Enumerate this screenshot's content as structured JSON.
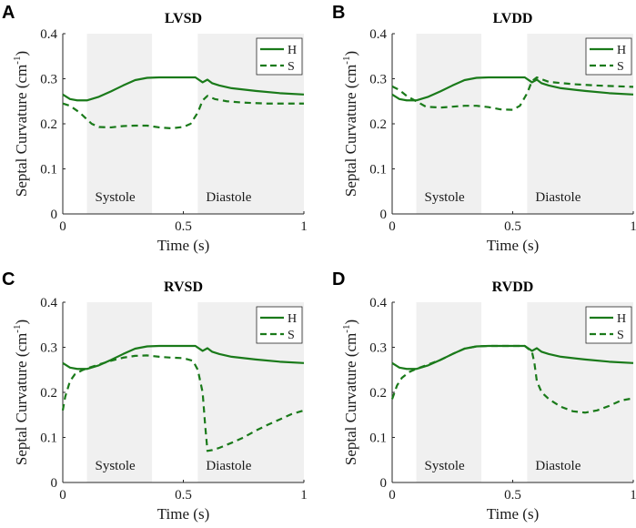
{
  "chart_data": [
    {
      "panel": "A",
      "type": "line",
      "title": "LVSD",
      "xlabel": "Time (s)",
      "ylabel": "Septal Curvature (cm",
      "ylabel_sup": "-1",
      "ylabel_close": ")",
      "xlim": [
        0,
        1
      ],
      "ylim": [
        0,
        0.4
      ],
      "xticks": [
        "0",
        "0.5",
        "1"
      ],
      "yticks": [
        "0",
        "0.1",
        "0.2",
        "0.3",
        "0.4"
      ],
      "xtick_values": [
        0,
        0.5,
        1
      ],
      "ytick_values": [
        0,
        0.1,
        0.2,
        0.3,
        0.4
      ],
      "regions": [
        {
          "label": "Systole",
          "start": 0.1,
          "end": 0.37
        },
        {
          "label": "Diastole",
          "start": 0.56,
          "end": 1.0
        }
      ],
      "legend": [
        "H",
        "S"
      ],
      "series": [
        {
          "name": "H",
          "style": "solid",
          "x": [
            0,
            0.03,
            0.06,
            0.1,
            0.15,
            0.2,
            0.25,
            0.3,
            0.35,
            0.4,
            0.45,
            0.5,
            0.55,
            0.58,
            0.6,
            0.62,
            0.65,
            0.7,
            0.8,
            0.9,
            1.0
          ],
          "y": [
            0.265,
            0.255,
            0.252,
            0.252,
            0.26,
            0.272,
            0.285,
            0.297,
            0.302,
            0.303,
            0.303,
            0.303,
            0.303,
            0.292,
            0.298,
            0.29,
            0.285,
            0.279,
            0.273,
            0.268,
            0.265
          ]
        },
        {
          "name": "S",
          "style": "dashed",
          "x": [
            0,
            0.03,
            0.07,
            0.1,
            0.12,
            0.15,
            0.2,
            0.25,
            0.3,
            0.35,
            0.4,
            0.45,
            0.5,
            0.53,
            0.56,
            0.58,
            0.6,
            0.63,
            0.68,
            0.75,
            0.85,
            1.0
          ],
          "y": [
            0.245,
            0.24,
            0.225,
            0.21,
            0.2,
            0.193,
            0.192,
            0.195,
            0.196,
            0.196,
            0.192,
            0.19,
            0.193,
            0.2,
            0.225,
            0.252,
            0.262,
            0.255,
            0.25,
            0.247,
            0.245,
            0.245
          ]
        }
      ]
    },
    {
      "panel": "B",
      "type": "line",
      "title": "LVDD",
      "xlabel": "Time (s)",
      "ylabel": "Septal Curvature (cm",
      "ylabel_sup": "-1",
      "ylabel_close": ")",
      "xlim": [
        0,
        1
      ],
      "ylim": [
        0,
        0.4
      ],
      "xticks": [
        "0",
        "0.5",
        "1"
      ],
      "yticks": [
        "0",
        "0.1",
        "0.2",
        "0.3",
        "0.4"
      ],
      "xtick_values": [
        0,
        0.5,
        1
      ],
      "ytick_values": [
        0,
        0.1,
        0.2,
        0.3,
        0.4
      ],
      "regions": [
        {
          "label": "Systole",
          "start": 0.1,
          "end": 0.37
        },
        {
          "label": "Diastole",
          "start": 0.56,
          "end": 1.0
        }
      ],
      "legend": [
        "H",
        "S"
      ],
      "series": [
        {
          "name": "H",
          "style": "solid",
          "x": [
            0,
            0.03,
            0.06,
            0.1,
            0.15,
            0.2,
            0.25,
            0.3,
            0.35,
            0.4,
            0.45,
            0.5,
            0.55,
            0.58,
            0.6,
            0.62,
            0.65,
            0.7,
            0.8,
            0.9,
            1.0
          ],
          "y": [
            0.265,
            0.255,
            0.252,
            0.252,
            0.26,
            0.272,
            0.285,
            0.297,
            0.302,
            0.303,
            0.303,
            0.303,
            0.303,
            0.292,
            0.298,
            0.29,
            0.285,
            0.279,
            0.273,
            0.268,
            0.265
          ]
        },
        {
          "name": "S",
          "style": "dashed",
          "x": [
            0,
            0.03,
            0.06,
            0.1,
            0.14,
            0.2,
            0.25,
            0.3,
            0.35,
            0.4,
            0.45,
            0.5,
            0.53,
            0.56,
            0.58,
            0.6,
            0.65,
            0.75,
            0.85,
            1.0
          ],
          "y": [
            0.283,
            0.275,
            0.262,
            0.25,
            0.238,
            0.236,
            0.238,
            0.24,
            0.24,
            0.237,
            0.232,
            0.231,
            0.24,
            0.268,
            0.295,
            0.303,
            0.293,
            0.288,
            0.285,
            0.282
          ]
        }
      ]
    },
    {
      "panel": "C",
      "type": "line",
      "title": "RVSD",
      "xlabel": "Time (s)",
      "ylabel": "Septal Curvature (cm",
      "ylabel_sup": "-1",
      "ylabel_close": ")",
      "xlim": [
        0,
        1
      ],
      "ylim": [
        0,
        0.4
      ],
      "xticks": [
        "0",
        "0.5",
        "1"
      ],
      "yticks": [
        "0",
        "0.1",
        "0.2",
        "0.3",
        "0.4"
      ],
      "xtick_values": [
        0,
        0.5,
        1
      ],
      "ytick_values": [
        0,
        0.1,
        0.2,
        0.3,
        0.4
      ],
      "regions": [
        {
          "label": "Systole",
          "start": 0.1,
          "end": 0.37
        },
        {
          "label": "Diastole",
          "start": 0.56,
          "end": 1.0
        }
      ],
      "legend": [
        "H",
        "S"
      ],
      "series": [
        {
          "name": "H",
          "style": "solid",
          "x": [
            0,
            0.03,
            0.06,
            0.1,
            0.15,
            0.2,
            0.25,
            0.3,
            0.35,
            0.4,
            0.45,
            0.5,
            0.55,
            0.58,
            0.6,
            0.62,
            0.65,
            0.7,
            0.8,
            0.9,
            1.0
          ],
          "y": [
            0.265,
            0.255,
            0.252,
            0.252,
            0.26,
            0.272,
            0.285,
            0.297,
            0.302,
            0.303,
            0.303,
            0.303,
            0.303,
            0.292,
            0.298,
            0.29,
            0.285,
            0.279,
            0.273,
            0.268,
            0.265
          ]
        },
        {
          "name": "S",
          "style": "dashed",
          "x": [
            0,
            0.01,
            0.03,
            0.05,
            0.08,
            0.1,
            0.15,
            0.2,
            0.25,
            0.3,
            0.35,
            0.4,
            0.45,
            0.5,
            0.54,
            0.56,
            0.58,
            0.59,
            0.6,
            0.62,
            0.65,
            0.7,
            0.75,
            0.8,
            0.85,
            0.9,
            0.95,
            1.0
          ],
          "y": [
            0.16,
            0.19,
            0.225,
            0.24,
            0.249,
            0.253,
            0.262,
            0.27,
            0.277,
            0.281,
            0.282,
            0.279,
            0.277,
            0.276,
            0.27,
            0.25,
            0.2,
            0.13,
            0.07,
            0.072,
            0.077,
            0.088,
            0.1,
            0.115,
            0.128,
            0.14,
            0.152,
            0.16
          ]
        }
      ]
    },
    {
      "panel": "D",
      "type": "line",
      "title": "RVDD",
      "xlabel": "Time (s)",
      "ylabel": "Septal Curvature (cm",
      "ylabel_sup": "-1",
      "ylabel_close": ")",
      "xlim": [
        0,
        1
      ],
      "ylim": [
        0,
        0.4
      ],
      "xticks": [
        "0",
        "0.5",
        "1"
      ],
      "yticks": [
        "0",
        "0.1",
        "0.2",
        "0.3",
        "0.4"
      ],
      "xtick_values": [
        0,
        0.5,
        1
      ],
      "ytick_values": [
        0,
        0.1,
        0.2,
        0.3,
        0.4
      ],
      "regions": [
        {
          "label": "Systole",
          "start": 0.1,
          "end": 0.37
        },
        {
          "label": "Diastole",
          "start": 0.56,
          "end": 1.0
        }
      ],
      "legend": [
        "H",
        "S"
      ],
      "series": [
        {
          "name": "H",
          "style": "solid",
          "x": [
            0,
            0.03,
            0.06,
            0.1,
            0.15,
            0.2,
            0.25,
            0.3,
            0.35,
            0.4,
            0.45,
            0.5,
            0.55,
            0.58,
            0.6,
            0.62,
            0.65,
            0.7,
            0.8,
            0.9,
            1.0
          ],
          "y": [
            0.265,
            0.255,
            0.252,
            0.252,
            0.26,
            0.272,
            0.285,
            0.297,
            0.302,
            0.303,
            0.303,
            0.303,
            0.303,
            0.292,
            0.298,
            0.29,
            0.285,
            0.279,
            0.273,
            0.268,
            0.265
          ]
        },
        {
          "name": "S",
          "style": "dashed",
          "x": [
            0,
            0.02,
            0.04,
            0.07,
            0.1,
            0.15,
            0.2,
            0.25,
            0.3,
            0.35,
            0.4,
            0.45,
            0.5,
            0.55,
            0.58,
            0.59,
            0.6,
            0.62,
            0.65,
            0.7,
            0.75,
            0.8,
            0.85,
            0.9,
            0.95,
            1.0
          ],
          "y": [
            0.185,
            0.215,
            0.232,
            0.245,
            0.252,
            0.262,
            0.272,
            0.285,
            0.297,
            0.302,
            0.303,
            0.303,
            0.303,
            0.303,
            0.29,
            0.265,
            0.225,
            0.2,
            0.185,
            0.168,
            0.158,
            0.155,
            0.16,
            0.17,
            0.182,
            0.187
          ]
        }
      ]
    }
  ],
  "colors": {
    "line": "#1a7a1a",
    "shade": "#f0f0f0",
    "axis": "#262626",
    "background": "#ffffff"
  }
}
